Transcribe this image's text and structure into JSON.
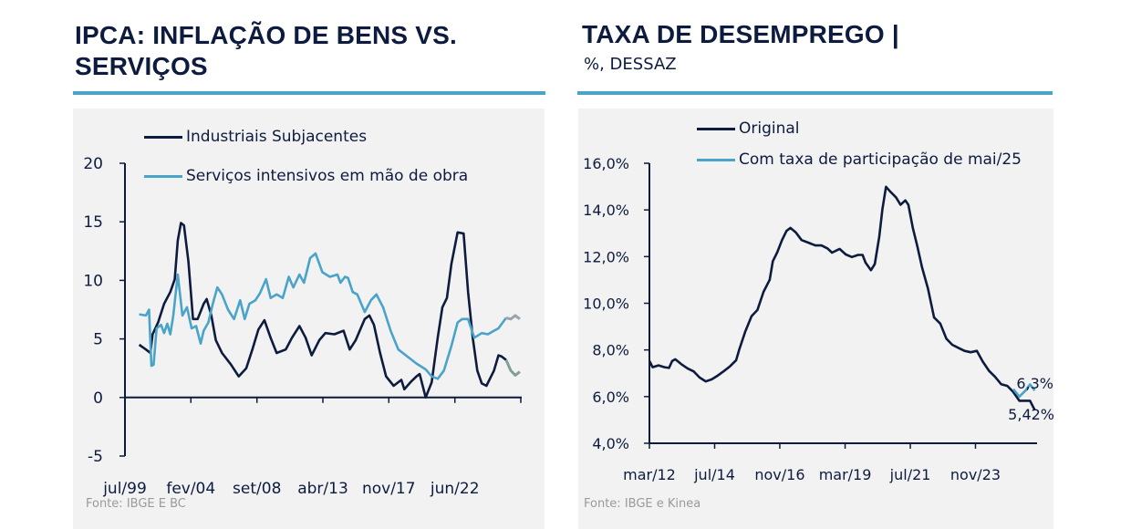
{
  "left": {
    "title_line1": "IPCA: INFLAÇÃO DE BENS VS.",
    "title_line2": "SERVIÇOS",
    "source": "Fonte: IBGE E BC"
  },
  "right": {
    "title": "TAXA DE DESEMPREGO |",
    "subtitle": "%, DESSAZ",
    "source": "Fonte: IBGE e Kinea"
  },
  "colors": {
    "navy": "#0d1b3e",
    "light_blue": "#4aa3c8",
    "proj_navy": "#7f9f99",
    "proj_light": "#9aa4ad"
  },
  "chart_data": [
    {
      "type": "line",
      "title": "IPCA: INFLAÇÃO DE BENS VS. SERVIÇOS",
      "xlabel": "",
      "ylabel": "",
      "xlim": [
        1999.5,
        2027.0
      ],
      "ylim": [
        -5,
        20
      ],
      "yticks": [
        {
          "v": -5,
          "label": "-5"
        },
        {
          "v": 0,
          "label": "0"
        },
        {
          "v": 5,
          "label": "5"
        },
        {
          "v": 10,
          "label": "10"
        },
        {
          "v": 15,
          "label": "15"
        },
        {
          "v": 20,
          "label": "20"
        }
      ],
      "xticks": [
        {
          "v": 1999.5,
          "label": "jul/99"
        },
        {
          "v": 2004.08,
          "label": "fev/04"
        },
        {
          "v": 2008.67,
          "label": "set/08"
        },
        {
          "v": 2013.25,
          "label": "abr/13"
        },
        {
          "v": 2017.83,
          "label": "nov/17"
        },
        {
          "v": 2022.42,
          "label": "jun/22"
        },
        {
          "v": 2027.0,
          "label": ""
        }
      ],
      "legend_position": "top",
      "series": [
        {
          "name": "Industriais Subjacentes",
          "color": "#0d1b3e",
          "x": [
            2000.49,
            2000.96,
            2001.27,
            2001.42,
            2001.8,
            2002.22,
            2002.65,
            2002.96,
            2003.17,
            2003.39,
            2003.6,
            2003.91,
            2004.23,
            2004.55,
            2004.97,
            2005.18,
            2005.5,
            2005.81,
            2006.24,
            2006.87,
            2007.4,
            2007.93,
            2008.35,
            2008.77,
            2009.19,
            2009.62,
            2010.04,
            2010.67,
            2011.1,
            2011.62,
            2012.05,
            2012.47,
            2013.0,
            2013.42,
            2014.05,
            2014.69,
            2015.11,
            2015.53,
            2016.16,
            2016.48,
            2016.8,
            2017.22,
            2017.64,
            2018.17,
            2018.7,
            2018.91,
            2019.33,
            2019.75,
            2019.97,
            2020.39,
            2020.81,
            2021.23,
            2021.55,
            2021.87,
            2022.18,
            2022.61,
            2023.03,
            2023.34,
            2023.66,
            2023.98,
            2024.29,
            2024.61,
            2025.14,
            2025.45,
            2025.67,
            2025.98
          ],
          "y": [
            4.5,
            4.1,
            3.8,
            5.4,
            6.4,
            8.0,
            9.0,
            10.1,
            13.4,
            14.9,
            14.7,
            11.6,
            6.7,
            6.7,
            8.0,
            8.4,
            7.0,
            4.9,
            3.8,
            2.8,
            1.8,
            2.5,
            4.1,
            5.8,
            6.6,
            5.1,
            3.8,
            4.1,
            5.1,
            6.1,
            5.1,
            3.6,
            4.9,
            5.5,
            5.4,
            5.7,
            4.1,
            4.9,
            6.7,
            7.0,
            6.2,
            3.8,
            1.8,
            1.0,
            1.5,
            0.7,
            1.3,
            1.8,
            2.0,
            0.0,
            1.3,
            5.1,
            7.7,
            8.5,
            11.4,
            14.1,
            14.0,
            9.0,
            5.1,
            2.3,
            1.2,
            1.0,
            2.3,
            3.6,
            3.5,
            3.2
          ],
          "projection": {
            "x": [
              2025.98,
              2026.3,
              2026.62,
              2026.93
            ],
            "y": [
              3.2,
              2.3,
              1.9,
              2.2
            ],
            "color": "#7f9f99"
          }
        },
        {
          "name": "Serviços intensivos em mão de obra",
          "color": "#4aa3c8",
          "x": [
            2000.49,
            2000.96,
            2001.17,
            2001.34,
            2001.49,
            2001.7,
            2002.01,
            2002.22,
            2002.44,
            2002.65,
            2002.86,
            2003.17,
            2003.49,
            2003.81,
            2004.13,
            2004.44,
            2004.76,
            2004.97,
            2005.29,
            2005.6,
            2005.92,
            2006.24,
            2006.66,
            2007.08,
            2007.5,
            2007.82,
            2008.14,
            2008.56,
            2008.88,
            2009.3,
            2009.62,
            2010.04,
            2010.46,
            2010.88,
            2011.2,
            2011.62,
            2011.94,
            2012.36,
            2012.74,
            2013.21,
            2013.73,
            2014.26,
            2014.47,
            2014.79,
            2015.0,
            2015.32,
            2015.64,
            2016.16,
            2016.59,
            2016.97,
            2017.43,
            2017.96,
            2018.49,
            2019.12,
            2019.75,
            2020.39,
            2020.81,
            2021.23,
            2021.66,
            2022.18,
            2022.61,
            2022.92,
            2023.34,
            2023.77,
            2024.29,
            2024.71,
            2025.14,
            2025.45,
            2025.98
          ],
          "y": [
            7.1,
            7.0,
            7.5,
            2.7,
            2.8,
            5.9,
            6.2,
            5.5,
            6.3,
            5.4,
            7.0,
            10.5,
            7.0,
            7.7,
            5.9,
            6.1,
            4.6,
            5.7,
            6.4,
            8.0,
            9.4,
            8.8,
            7.5,
            6.7,
            8.3,
            6.7,
            8.0,
            8.3,
            8.9,
            10.1,
            8.5,
            8.8,
            8.5,
            10.3,
            9.4,
            10.5,
            9.8,
            11.9,
            12.3,
            10.7,
            10.3,
            10.5,
            9.8,
            10.3,
            10.2,
            9.0,
            8.8,
            7.3,
            8.3,
            8.8,
            7.7,
            5.7,
            4.1,
            3.5,
            2.9,
            2.4,
            1.8,
            1.6,
            2.3,
            4.4,
            6.4,
            6.7,
            6.7,
            5.1,
            5.5,
            5.4,
            5.7,
            5.9,
            6.8
          ],
          "projection": {
            "x": [
              2025.98,
              2026.3,
              2026.62,
              2026.93
            ],
            "y": [
              6.8,
              6.7,
              7.0,
              6.7
            ],
            "color": "#9aa4ad"
          }
        }
      ]
    },
    {
      "type": "line",
      "title": "TAXA DE DESEMPREGO | %, DESSAZ",
      "xlabel": "",
      "ylabel": "",
      "xlim": [
        2012.167,
        2026.0
      ],
      "ylim": [
        4,
        16
      ],
      "yticks": [
        {
          "v": 4,
          "label": "4,0%"
        },
        {
          "v": 6,
          "label": "6,0%"
        },
        {
          "v": 8,
          "label": "8,0%"
        },
        {
          "v": 10,
          "label": "10,0%"
        },
        {
          "v": 12,
          "label": "12,0%"
        },
        {
          "v": 14,
          "label": "14,0%"
        },
        {
          "v": 16,
          "label": "16,0%"
        }
      ],
      "xticks": [
        {
          "v": 2012.167,
          "label": "mar/12"
        },
        {
          "v": 2014.5,
          "label": "jul/14"
        },
        {
          "v": 2016.83,
          "label": "nov/16"
        },
        {
          "v": 2019.167,
          "label": "mar/19"
        },
        {
          "v": 2021.5,
          "label": "jul/21"
        },
        {
          "v": 2023.83,
          "label": "nov/23"
        }
      ],
      "legend_position": "top",
      "annotations": [
        {
          "text": "6,3%",
          "series": "Com taxa de participação de mai/25"
        },
        {
          "text": "5,42%",
          "series": "Original"
        }
      ],
      "series": [
        {
          "name": "Original",
          "color": "#0d1b3e",
          "x": [
            2012.17,
            2012.28,
            2012.49,
            2012.71,
            2012.87,
            2012.98,
            2013.09,
            2013.31,
            2013.53,
            2013.75,
            2013.96,
            2014.18,
            2014.4,
            2014.62,
            2014.84,
            2015.05,
            2015.27,
            2015.38,
            2015.6,
            2015.82,
            2016.03,
            2016.25,
            2016.47,
            2016.58,
            2016.74,
            2016.91,
            2017.07,
            2017.21,
            2017.4,
            2017.61,
            2017.89,
            2018.1,
            2018.32,
            2018.54,
            2018.7,
            2018.97,
            2019.19,
            2019.41,
            2019.63,
            2019.79,
            2019.9,
            2020.09,
            2020.23,
            2020.39,
            2020.5,
            2020.63,
            2020.77,
            2020.99,
            2021.15,
            2021.32,
            2021.43,
            2021.59,
            2021.75,
            2021.92,
            2022.13,
            2022.35,
            2022.57,
            2022.79,
            2023.0,
            2023.22,
            2023.44,
            2023.66,
            2023.88,
            2024.09,
            2024.31,
            2024.53,
            2024.75,
            2024.97,
            2025.18,
            2025.4,
            2025.62,
            2025.78,
            2025.95
          ],
          "y": [
            7.52,
            7.26,
            7.34,
            7.26,
            7.23,
            7.52,
            7.6,
            7.39,
            7.21,
            7.08,
            6.82,
            6.65,
            6.74,
            6.91,
            7.1,
            7.3,
            7.56,
            8.02,
            8.8,
            9.45,
            9.71,
            10.49,
            11.01,
            11.8,
            12.19,
            12.71,
            13.1,
            13.23,
            13.04,
            12.71,
            12.58,
            12.48,
            12.48,
            12.35,
            12.17,
            12.33,
            12.09,
            11.98,
            12.07,
            12.07,
            11.74,
            11.42,
            11.68,
            12.85,
            14.02,
            14.99,
            14.8,
            14.54,
            14.22,
            14.41,
            14.22,
            13.23,
            12.45,
            11.54,
            10.63,
            9.39,
            9.13,
            8.48,
            8.22,
            8.09,
            7.96,
            7.9,
            7.96,
            7.5,
            7.11,
            6.85,
            6.53,
            6.46,
            6.2,
            5.82,
            5.82,
            5.82,
            5.42
          ]
        },
        {
          "name": "Com taxa de participação de mai/25",
          "color": "#4aa3c8",
          "x": [
            2025.18,
            2025.4,
            2025.62,
            2025.78,
            2025.95
          ],
          "y": [
            6.32,
            6.0,
            6.26,
            6.52,
            6.26
          ]
        }
      ]
    }
  ]
}
